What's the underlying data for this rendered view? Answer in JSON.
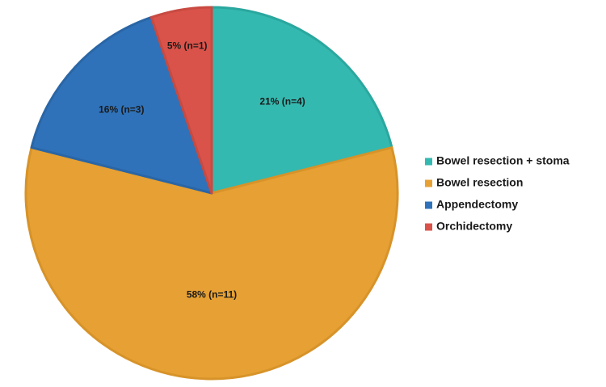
{
  "chart_data": {
    "type": "pie",
    "title": "",
    "categories": [
      "Bowel resection + stoma",
      "Bowel resection",
      "Appendectomy",
      "Orchidectomy"
    ],
    "values": [
      4,
      11,
      3,
      1
    ],
    "percent_labels": [
      "21% (n=4)",
      "58% (n=11)",
      "16% (n=3)",
      "5% (n=1)"
    ],
    "colors": [
      "#34b9b0",
      "#e6a033",
      "#2f72b9",
      "#d9534a"
    ],
    "border_colors": [
      "#2aa79e",
      "#d79329",
      "#2a66a6",
      "#c84a41"
    ],
    "start_angle_deg": 0,
    "direction": "clockwise",
    "legend_position": "right"
  }
}
